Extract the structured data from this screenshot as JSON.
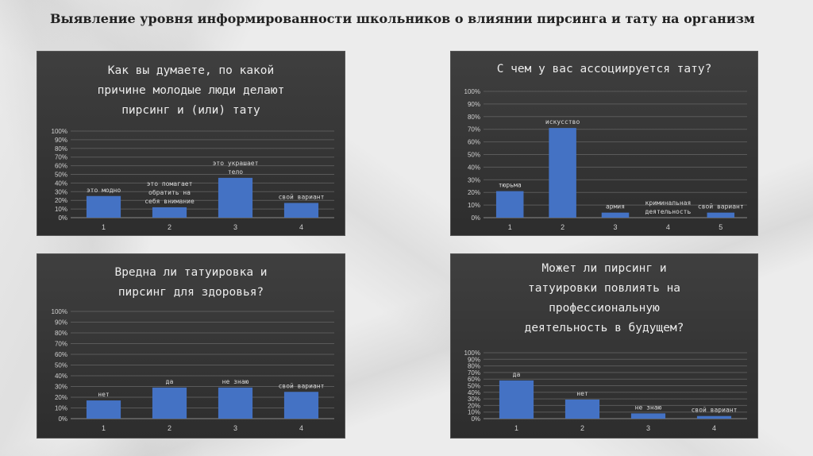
{
  "page": {
    "title": "Выявление уровня информированности школьников о влиянии пирсинга и тату  на организм"
  },
  "colors": {
    "bar": "#4472c4",
    "panel_bg": "#363636",
    "text": "#d9d9d9"
  },
  "chart_data": [
    {
      "type": "bar",
      "title": "Как вы думаете, по какой причине молодые люди делают пирсинг и (или) тату",
      "title_lines": [
        "Как вы думаете, по какой",
        "причине молодые люди делают",
        "пирсинг и (или) тату"
      ],
      "categories": [
        "1",
        "2",
        "3",
        "4"
      ],
      "values": [
        25,
        12,
        46,
        17
      ],
      "data_labels": [
        [
          "это модно"
        ],
        [
          "это помагает",
          "обратить на",
          "себя внимание"
        ],
        [
          "это украшает",
          "тело"
        ],
        [
          "свой вариант"
        ]
      ],
      "ylim": [
        0,
        100
      ],
      "yticks": [
        "0%",
        "10%",
        "20%",
        "30%",
        "40%",
        "50%",
        "60%",
        "70%",
        "80%",
        "90%",
        "100%"
      ],
      "grid": true
    },
    {
      "type": "bar",
      "title": "С чем у вас ассоциируется тату?",
      "title_lines": [
        "С чем у вас ассоциируется тату?"
      ],
      "categories": [
        "1",
        "2",
        "3",
        "4",
        "5"
      ],
      "values": [
        21,
        71,
        4,
        0,
        4
      ],
      "data_labels": [
        [
          "тюрьма"
        ],
        [
          "искусство"
        ],
        [
          "армия"
        ],
        [
          "криминальная",
          "деятельность"
        ],
        [
          "свой вариант"
        ]
      ],
      "ylim": [
        0,
        100
      ],
      "yticks": [
        "0%",
        "10%",
        "20%",
        "30%",
        "40%",
        "50%",
        "60%",
        "70%",
        "80%",
        "90%",
        "100%"
      ],
      "grid": true
    },
    {
      "type": "bar",
      "title": "Вредна ли татуировка и пирсинг для здоровья?",
      "title_lines": [
        "Вредна ли татуировка и",
        "пирсинг для здоровья?"
      ],
      "categories": [
        "1",
        "2",
        "3",
        "4"
      ],
      "values": [
        17,
        29,
        29,
        25
      ],
      "data_labels": [
        [
          "нет"
        ],
        [
          "да"
        ],
        [
          "не знаю"
        ],
        [
          "свой вариант"
        ]
      ],
      "ylim": [
        0,
        100
      ],
      "yticks": [
        "0%",
        "10%",
        "20%",
        "30%",
        "40%",
        "50%",
        "60%",
        "70%",
        "80%",
        "90%",
        "100%"
      ],
      "grid": true
    },
    {
      "type": "bar",
      "title": "Может ли пирсинг и татуировки повлиять на профессиональную деятельность в будущем?",
      "title_lines": [
        "Может ли пирсинг и",
        "татуировки повлиять на",
        "профессиональную",
        "деятельность в будущем?"
      ],
      "categories": [
        "1",
        "2",
        "3",
        "4"
      ],
      "values": [
        58,
        29,
        8,
        4
      ],
      "data_labels": [
        [
          "да"
        ],
        [
          "нет"
        ],
        [
          "не знаю"
        ],
        [
          "свой вариант"
        ]
      ],
      "ylim": [
        0,
        100
      ],
      "yticks": [
        "0%",
        "10%",
        "20%",
        "30%",
        "40%",
        "50%",
        "60%",
        "70%",
        "80%",
        "90%",
        "100%"
      ],
      "grid": true
    }
  ]
}
